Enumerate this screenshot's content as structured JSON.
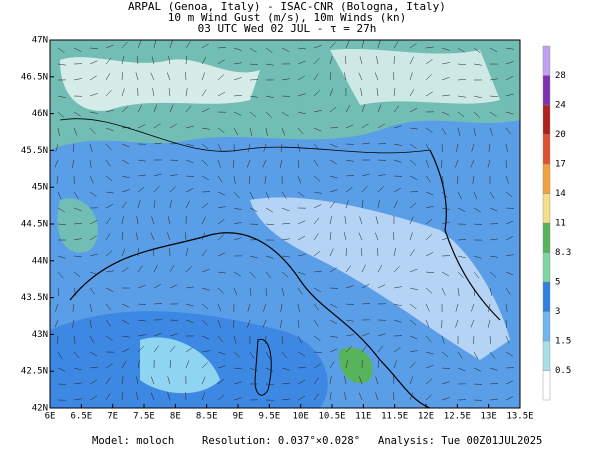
{
  "header": {
    "line1": "ARPAL (Genoa, Italy)  -  ISAC-CNR (Bologna, Italy)",
    "line2": "10 m Wind Gust (m/s), 10m Winds (kn)",
    "line3": "03 UTC Wed 02 JUL  -  τ = 27h"
  },
  "map": {
    "xlim": [
      6,
      13.5
    ],
    "ylim": [
      42,
      47
    ],
    "xticks": [
      {
        "value": 6,
        "label": "6E"
      },
      {
        "value": 6.5,
        "label": "6.5E"
      },
      {
        "value": 7,
        "label": "7E"
      },
      {
        "value": 7.5,
        "label": "7.5E"
      },
      {
        "value": 8,
        "label": "8E"
      },
      {
        "value": 8.5,
        "label": "8.5E"
      },
      {
        "value": 9,
        "label": "9E"
      },
      {
        "value": 9.5,
        "label": "9.5E"
      },
      {
        "value": 10,
        "label": "10E"
      },
      {
        "value": 10.5,
        "label": "10.5E"
      },
      {
        "value": 11,
        "label": "11E"
      },
      {
        "value": 11.5,
        "label": "11.5E"
      },
      {
        "value": 12,
        "label": "12E"
      },
      {
        "value": 12.5,
        "label": "12.5E"
      },
      {
        "value": 13,
        "label": "13E"
      },
      {
        "value": 13.5,
        "label": "13.5E"
      }
    ],
    "yticks": [
      {
        "value": 42,
        "label": "42N"
      },
      {
        "value": 42.5,
        "label": "42.5N"
      },
      {
        "value": 43,
        "label": "43N"
      },
      {
        "value": 43.5,
        "label": "43.5N"
      },
      {
        "value": 44,
        "label": "44N"
      },
      {
        "value": 44.5,
        "label": "44.5N"
      },
      {
        "value": 45,
        "label": "45N"
      },
      {
        "value": 45.5,
        "label": "45.5N"
      },
      {
        "value": 46,
        "label": "46N"
      },
      {
        "value": 46.5,
        "label": "46.5N"
      },
      {
        "value": 47,
        "label": "47N"
      }
    ]
  },
  "colorbar": {
    "levels": [
      0.5,
      1.5,
      3,
      5,
      8.3,
      11,
      14,
      17,
      20,
      24,
      28
    ],
    "colors": [
      "#ffffff",
      "#a8e0ea",
      "#6fb6f0",
      "#2f7fe0",
      "#7fd6a0",
      "#58b45a",
      "#f5e08a",
      "#f0a040",
      "#e05030",
      "#b02020",
      "#8030b0",
      "#c0a0f0"
    ]
  },
  "footer": {
    "model": "Model: moloch",
    "resolution": "Resolution: 0.037°×0.028°",
    "analysis": "Analysis: Tue 00Z01JUL2025"
  }
}
